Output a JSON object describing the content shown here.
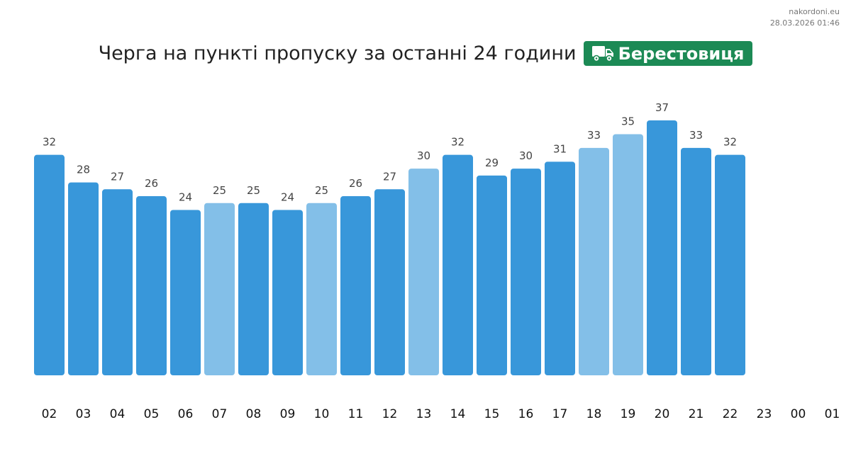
{
  "source": {
    "site": "nakordoni.eu",
    "timestamp": "28.03.2026 01:46"
  },
  "header": {
    "title": "Черга на пункті пропуску за останні 24 години",
    "checkpoint": "Берестовиця",
    "checkpoint_icon": "truck-icon"
  },
  "colors": {
    "bar_primary": "#3897da",
    "bar_light": "#83bfe8",
    "badge": "#1c8a55"
  },
  "chart_data": {
    "type": "bar",
    "title": "",
    "xlabel": "",
    "ylabel": "",
    "categories": [
      "02",
      "03",
      "04",
      "05",
      "06",
      "07",
      "08",
      "09",
      "10",
      "11",
      "12",
      "13",
      "14",
      "15",
      "16",
      "17",
      "18",
      "19",
      "20",
      "21",
      "22",
      "23",
      "00",
      "01"
    ],
    "values": [
      32,
      28,
      27,
      26,
      24,
      25,
      25,
      24,
      25,
      26,
      27,
      30,
      32,
      29,
      30,
      31,
      33,
      35,
      37,
      33,
      32,
      null,
      null,
      null
    ],
    "highlight": [
      false,
      false,
      false,
      false,
      false,
      true,
      false,
      false,
      true,
      false,
      false,
      true,
      false,
      false,
      false,
      false,
      true,
      true,
      false,
      false,
      false,
      false,
      false,
      false
    ],
    "ylim": [
      0,
      37
    ],
    "grid": false,
    "legend": "none"
  }
}
